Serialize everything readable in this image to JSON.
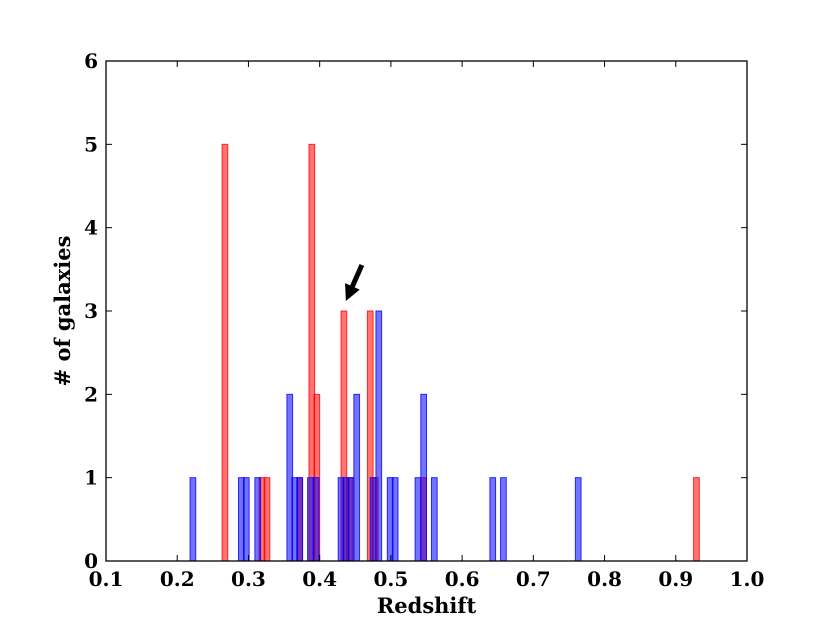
{
  "chart_data": {
    "type": "bar",
    "title": "",
    "xlabel": "Redshift",
    "ylabel": "# of galaxies",
    "xlim": [
      0.1,
      1.0
    ],
    "ylim": [
      0,
      6
    ],
    "x_ticks": [
      "0.1",
      "0.2",
      "0.3",
      "0.4",
      "0.5",
      "0.6",
      "0.7",
      "0.8",
      "0.9",
      "1.0"
    ],
    "y_ticks": [
      "0",
      "1",
      "2",
      "3",
      "4",
      "5",
      "6"
    ],
    "bin_width": 0.008,
    "grid": false,
    "legend": false,
    "series": [
      {
        "color": "#ff0000",
        "values": [
          {
            "x": 0.267,
            "y": 5
          },
          {
            "x": 0.319,
            "y": 1
          },
          {
            "x": 0.326,
            "y": 1
          },
          {
            "x": 0.372,
            "y": 1
          },
          {
            "x": 0.389,
            "y": 5
          },
          {
            "x": 0.396,
            "y": 2
          },
          {
            "x": 0.434,
            "y": 3
          },
          {
            "x": 0.442,
            "y": 1
          },
          {
            "x": 0.471,
            "y": 3
          },
          {
            "x": 0.478,
            "y": 1
          },
          {
            "x": 0.546,
            "y": 1
          },
          {
            "x": 0.929,
            "y": 1
          }
        ]
      },
      {
        "color": "#0000ff",
        "values": [
          {
            "x": 0.222,
            "y": 1
          },
          {
            "x": 0.29,
            "y": 1
          },
          {
            "x": 0.297,
            "y": 1
          },
          {
            "x": 0.313,
            "y": 1
          },
          {
            "x": 0.358,
            "y": 2
          },
          {
            "x": 0.365,
            "y": 1
          },
          {
            "x": 0.372,
            "y": 1
          },
          {
            "x": 0.387,
            "y": 1
          },
          {
            "x": 0.395,
            "y": 1
          },
          {
            "x": 0.43,
            "y": 1
          },
          {
            "x": 0.437,
            "y": 1
          },
          {
            "x": 0.444,
            "y": 1
          },
          {
            "x": 0.452,
            "y": 2
          },
          {
            "x": 0.475,
            "y": 1
          },
          {
            "x": 0.483,
            "y": 3
          },
          {
            "x": 0.499,
            "y": 1
          },
          {
            "x": 0.506,
            "y": 1
          },
          {
            "x": 0.538,
            "y": 1
          },
          {
            "x": 0.546,
            "y": 2
          },
          {
            "x": 0.561,
            "y": 1
          },
          {
            "x": 0.643,
            "y": 1
          },
          {
            "x": 0.658,
            "y": 1
          },
          {
            "x": 0.763,
            "y": 1
          }
        ]
      }
    ],
    "annotation": {
      "type": "arrow",
      "target": {
        "x": 0.434,
        "y": 3
      },
      "color": "#000000"
    }
  }
}
